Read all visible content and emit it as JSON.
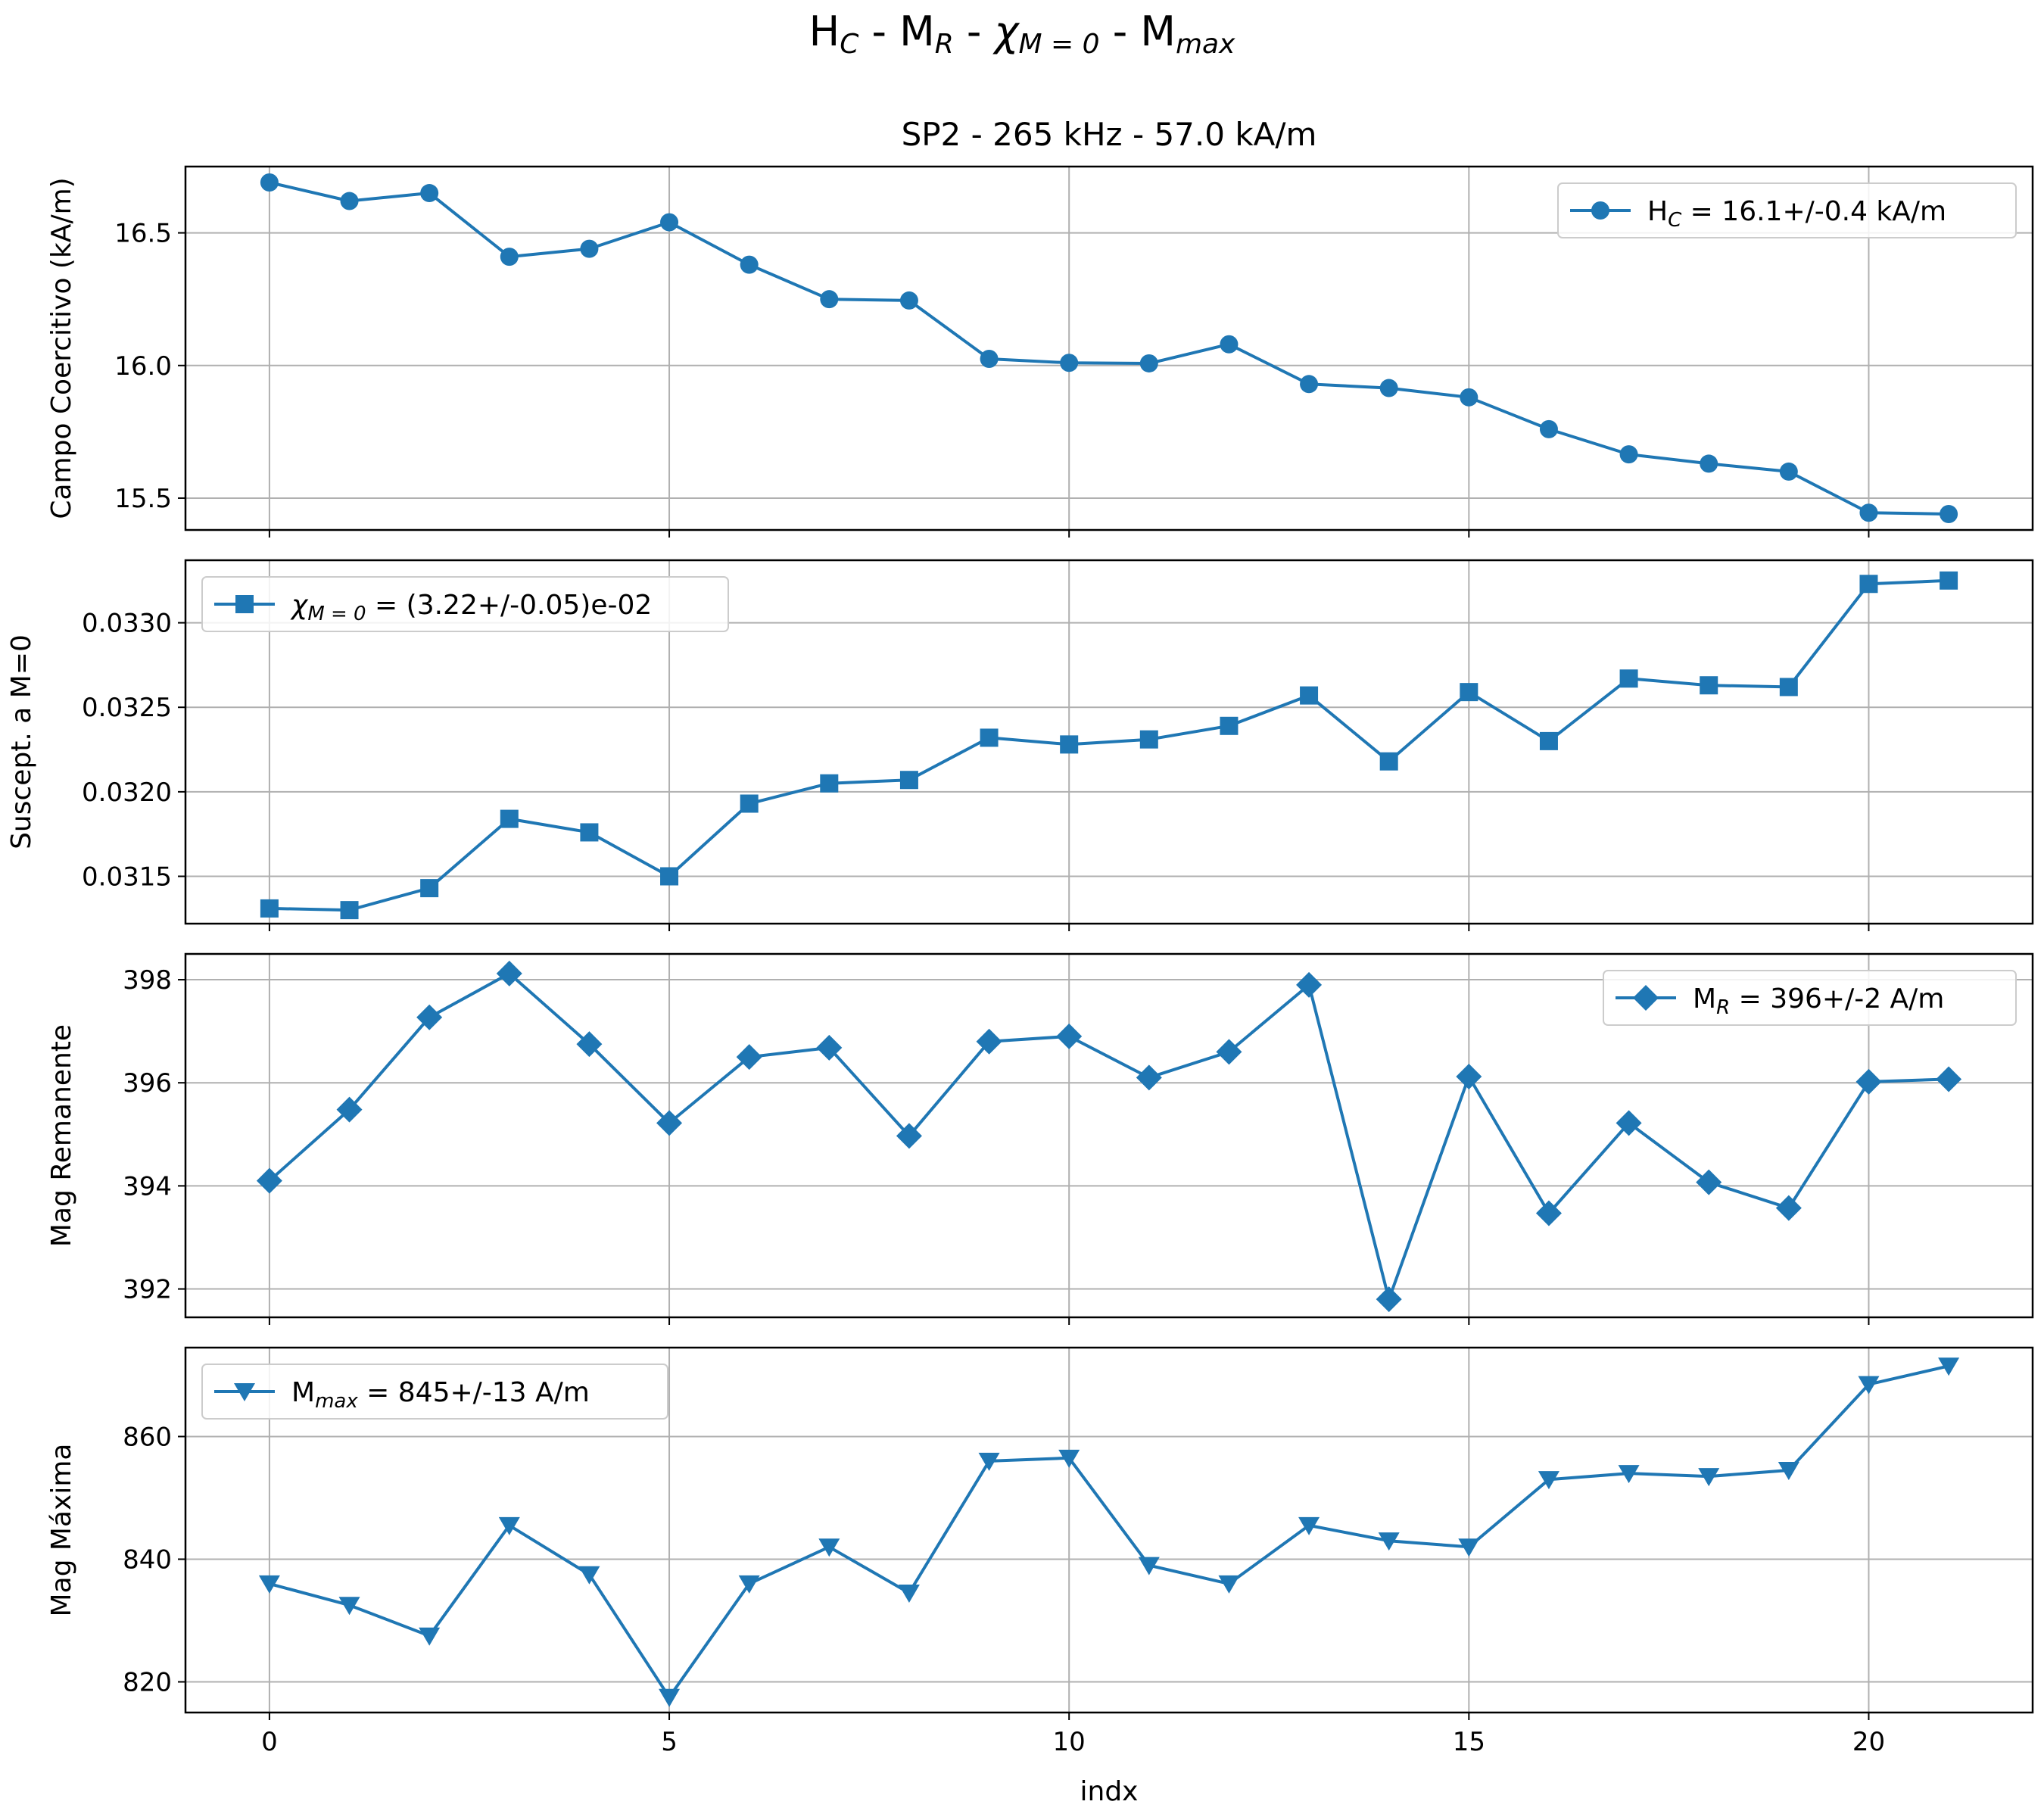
{
  "suptitle": {
    "main1": "H",
    "sub1": "C",
    "mid1": " - M",
    "sub2": "R",
    "mid2": " - ",
    "chi": "χ",
    "sub3": "M = 0",
    "mid3": " - M",
    "sub4": "max"
  },
  "panel_title": "SP2 - 265 kHz - 57.0 kA/m",
  "xlabel": "indx",
  "colors": {
    "series": "#1f77b4",
    "grid": "#b0b0b0"
  },
  "chart_data": [
    {
      "type": "line",
      "marker": "circle",
      "ylabel": "Campo Coercitivo (kA/m)",
      "legend": {
        "position": "top-right",
        "pre": "H",
        "sub": "C",
        "post": " = 16.1+/-0.4 kA/m"
      },
      "x": [
        0,
        1,
        2,
        3,
        4,
        5,
        6,
        7,
        8,
        9,
        10,
        11,
        12,
        13,
        14,
        15,
        16,
        17,
        18,
        19,
        20,
        21
      ],
      "values": [
        16.69,
        16.62,
        16.65,
        16.41,
        16.44,
        16.54,
        16.38,
        16.25,
        16.245,
        16.025,
        16.01,
        16.008,
        16.08,
        15.93,
        15.915,
        15.88,
        15.76,
        15.665,
        15.63,
        15.6,
        15.445,
        15.44
      ],
      "xlim": [
        -1.05,
        22.05
      ],
      "ylim": [
        15.38,
        16.75
      ],
      "yticks": [
        15.5,
        16.0,
        16.5
      ],
      "ytick_labels": [
        "15.5",
        "16.0",
        "16.5"
      ]
    },
    {
      "type": "line",
      "marker": "square",
      "ylabel": "Suscept. a M=0",
      "legend": {
        "position": "top-left",
        "chi": "χ",
        "sub": "M = 0",
        "post": " = (3.22+/-0.05)e-02"
      },
      "x": [
        0,
        1,
        2,
        3,
        4,
        5,
        6,
        7,
        8,
        9,
        10,
        11,
        12,
        13,
        14,
        15,
        16,
        17,
        18,
        19,
        20,
        21
      ],
      "values": [
        0.03131,
        0.0313,
        0.03143,
        0.03184,
        0.03176,
        0.0315,
        0.03193,
        0.03205,
        0.03207,
        0.03232,
        0.03228,
        0.03231,
        0.03239,
        0.03257,
        0.03218,
        0.03259,
        0.0323,
        0.03267,
        0.03263,
        0.03262,
        0.03323,
        0.03325
      ],
      "xlim": [
        -1.05,
        22.05
      ],
      "ylim": [
        0.03122,
        0.03337
      ],
      "yticks": [
        0.0315,
        0.032,
        0.0325,
        0.033
      ],
      "ytick_labels": [
        "0.0315",
        "0.0320",
        "0.0325",
        "0.0330"
      ]
    },
    {
      "type": "line",
      "marker": "diamond",
      "ylabel": "Mag Remanente",
      "legend": {
        "position": "top-right",
        "pre": "M",
        "sub": "R",
        "post": " = 396+/-2 A/m"
      },
      "x": [
        0,
        1,
        2,
        3,
        4,
        5,
        6,
        7,
        8,
        9,
        10,
        11,
        12,
        13,
        14,
        15,
        16,
        17,
        18,
        19,
        20,
        21
      ],
      "values": [
        394.1,
        395.48,
        397.27,
        398.12,
        396.75,
        395.22,
        396.5,
        396.68,
        394.97,
        396.8,
        396.9,
        396.1,
        396.6,
        397.9,
        391.8,
        396.12,
        393.47,
        395.22,
        394.07,
        393.57,
        396.02,
        396.07
      ],
      "xlim": [
        -1.05,
        22.05
      ],
      "ylim": [
        391.45,
        398.5
      ],
      "yticks": [
        392,
        394,
        396,
        398
      ],
      "ytick_labels": [
        "392",
        "394",
        "396",
        "398"
      ]
    },
    {
      "type": "line",
      "marker": "triangle-down",
      "ylabel": "Mag Máxima",
      "legend": {
        "position": "top-left",
        "pre": "M",
        "sub": "max",
        "post": " = 845+/-13 A/m"
      },
      "x": [
        0,
        1,
        2,
        3,
        4,
        5,
        6,
        7,
        8,
        9,
        10,
        11,
        12,
        13,
        14,
        15,
        16,
        17,
        18,
        19,
        20,
        21
      ],
      "values": [
        836,
        832.5,
        827.5,
        845.5,
        837.5,
        817.5,
        836,
        842,
        834.5,
        856,
        856.5,
        839,
        836,
        845.5,
        843,
        842,
        853,
        854,
        853.5,
        854.5,
        868.5,
        871.5
      ],
      "xlim": [
        -1.05,
        22.05
      ],
      "ylim": [
        815,
        874.5
      ],
      "yticks": [
        820,
        840,
        860
      ],
      "ytick_labels": [
        "820",
        "840",
        "860"
      ]
    }
  ],
  "xticks": [
    0,
    5,
    10,
    15,
    20
  ],
  "xtick_labels": [
    "0",
    "5",
    "10",
    "15",
    "20"
  ]
}
